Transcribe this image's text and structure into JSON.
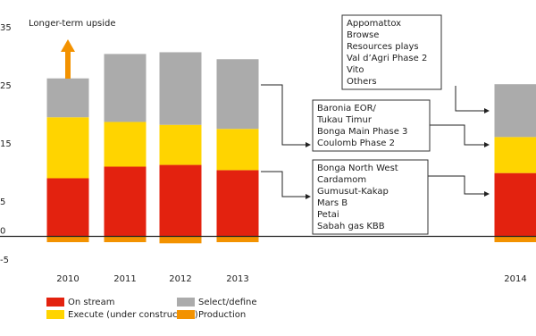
{
  "chart_data": {
    "type": "bar",
    "stacked": true,
    "categories": [
      "2010",
      "2011",
      "2012",
      "2013",
      "2014"
    ],
    "series": [
      {
        "name": "On stream",
        "color": "#e3220f",
        "values": [
          10,
          12,
          12.3,
          11.4,
          10.9
        ]
      },
      {
        "name": "Execute (under construction)",
        "color": "#ffd400",
        "values": [
          10.5,
          7.7,
          6.9,
          7.1,
          6.2
        ]
      },
      {
        "name": "Select/define",
        "color": "#ababab",
        "values": [
          6.7,
          11.7,
          12.5,
          12,
          9.1
        ]
      },
      {
        "name": "Production",
        "color": "#f39200",
        "values": [
          -1,
          -1,
          -1.2,
          -1,
          -1
        ]
      }
    ],
    "ylim": [
      -7,
      37
    ],
    "yticks": [
      -5,
      0,
      5,
      15,
      25,
      35
    ],
    "annotations": {
      "upside": "Longer-term upside",
      "boxes": [
        [
          "Appomattox",
          "Browse",
          "Resources plays",
          "Val d’Agri Phase 2",
          "Vito",
          "Others"
        ],
        [
          "Baronia EOR/",
          "Tukau Timur",
          "Bonga Main Phase 3",
          "Coulomb Phase 2"
        ],
        [
          "Bonga North West",
          "Cardamom",
          "Gumusut-Kakap",
          "Mars B",
          "Petai",
          "Sabah gas KBB"
        ]
      ]
    }
  }
}
